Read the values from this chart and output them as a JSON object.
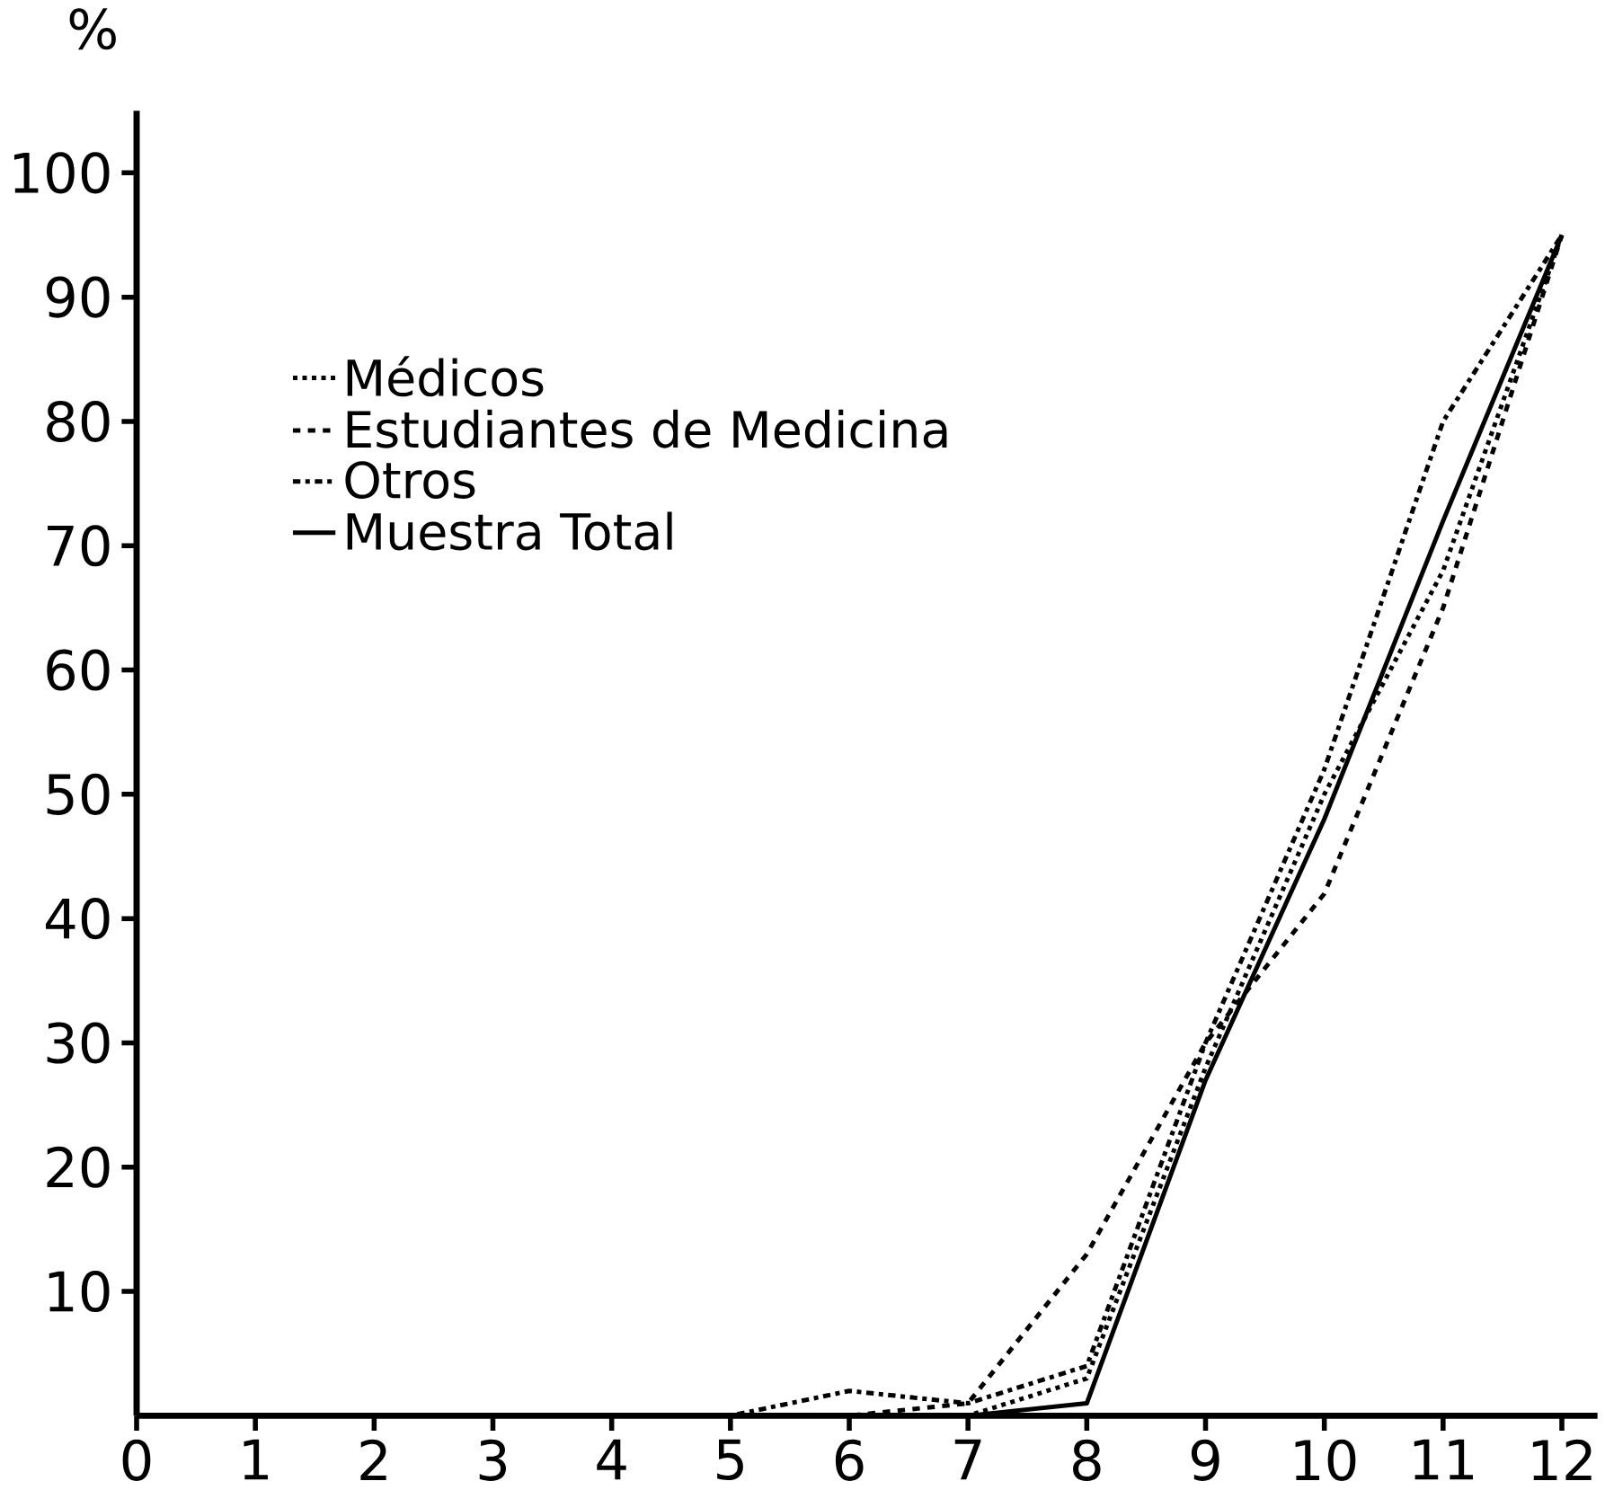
{
  "chart_data": {
    "type": "line",
    "ylabel": "%",
    "x": [
      1,
      2,
      3,
      4,
      5,
      6,
      7,
      8,
      9,
      10,
      11,
      12
    ],
    "xlim": [
      0,
      12.3
    ],
    "xticks": [
      0,
      1,
      2,
      3,
      4,
      5,
      6,
      7,
      8,
      9,
      10,
      11,
      12
    ],
    "ylim": [
      0,
      105
    ],
    "yticks": [
      10,
      20,
      30,
      40,
      50,
      60,
      70,
      80,
      90,
      100
    ],
    "legend": "top left",
    "grid": false,
    "series": [
      {
        "name": "Médicos",
        "color": "#000000",
        "line_style": "dotted",
        "values": [
          0,
          0,
          0,
          0,
          0,
          0,
          0,
          3,
          28,
          50,
          68,
          95
        ]
      },
      {
        "name": "Estudiantes de Medicina",
        "color": "#000000",
        "line_style": "dashed",
        "values": [
          0,
          0,
          0,
          0,
          0,
          0,
          1,
          13,
          30,
          42,
          65,
          95
        ]
      },
      {
        "name": "Otros",
        "color": "#000000",
        "line_style": "dashdotted",
        "values": [
          0,
          0,
          0,
          0,
          0,
          2,
          1,
          4,
          30,
          52,
          80,
          95
        ]
      },
      {
        "name": "Muestra Total",
        "color": "#000000",
        "line_style": "solid",
        "values": [
          0,
          0,
          0,
          0,
          0,
          0,
          0,
          1,
          27,
          48,
          72,
          95
        ]
      }
    ]
  }
}
